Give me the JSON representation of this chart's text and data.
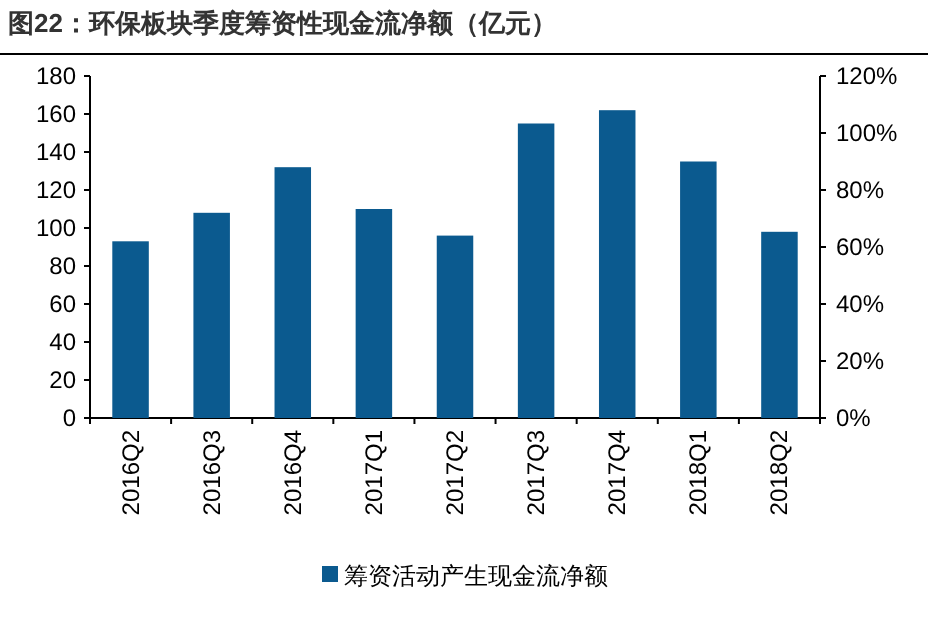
{
  "chart_data": {
    "type": "bar",
    "title": "图22：环保板块季度筹资性现金流净额（亿元）",
    "categories": [
      "2016Q2",
      "2016Q3",
      "2016Q4",
      "2017Q1",
      "2017Q2",
      "2017Q3",
      "2017Q4",
      "2018Q1",
      "2018Q2"
    ],
    "series": [
      {
        "name": "筹资活动产生现金流净额",
        "color": "#0b5a8f",
        "values": [
          93,
          108,
          132,
          110,
          96,
          155,
          162,
          135,
          98
        ]
      }
    ],
    "ylim": [
      0,
      180
    ],
    "yticks": [
      0,
      20,
      40,
      60,
      80,
      100,
      120,
      140,
      160,
      180
    ],
    "y2lim": [
      0,
      120
    ],
    "y2ticks": [
      {
        "value": 0,
        "label": "0%"
      },
      {
        "value": 20,
        "label": "20%"
      },
      {
        "value": 40,
        "label": "40%"
      },
      {
        "value": 60,
        "label": "60%"
      },
      {
        "value": 80,
        "label": "80%"
      },
      {
        "value": 100,
        "label": "100%"
      },
      {
        "value": 120,
        "label": "120%"
      }
    ],
    "legend": "bottom"
  }
}
